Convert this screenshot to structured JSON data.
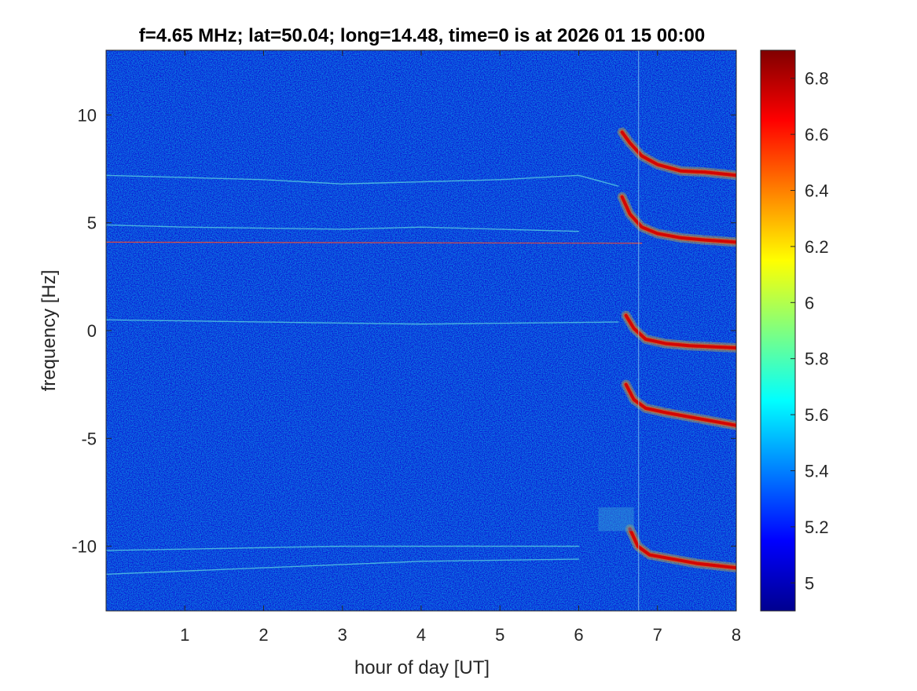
{
  "chart_data": {
    "type": "heatmap",
    "title": "f=4.65 MHz;  lat=50.04; long=14.48, time=0 is at 2026 01 15 00:00",
    "xlabel": "hour of day [UT]",
    "ylabel": "frequency [Hz]",
    "xlim": [
      0,
      8
    ],
    "ylim": [
      -13,
      13
    ],
    "x_ticks": [
      1,
      2,
      3,
      4,
      5,
      6,
      7,
      8
    ],
    "y_ticks": [
      10,
      5,
      0,
      -5,
      -10
    ],
    "colorbar": {
      "colormap": "jet",
      "range": [
        4.9,
        6.9
      ],
      "ticks": [
        6.8,
        6.6,
        6.4,
        6.2,
        6,
        5.8,
        5.6,
        5.4,
        5.2,
        5
      ]
    },
    "features": [
      {
        "kind": "weak-trace",
        "points": [
          [
            0,
            7.2
          ],
          [
            2,
            7.0
          ],
          [
            3,
            6.8
          ],
          [
            5,
            7.0
          ],
          [
            6,
            7.2
          ],
          [
            6.5,
            6.7
          ]
        ]
      },
      {
        "kind": "weak-trace",
        "points": [
          [
            0,
            4.9
          ],
          [
            1,
            4.8
          ],
          [
            3,
            4.7
          ],
          [
            4,
            4.8
          ],
          [
            6,
            4.6
          ]
        ]
      },
      {
        "kind": "line",
        "points": [
          [
            0,
            4.1
          ],
          [
            6.8,
            4.05
          ]
        ]
      },
      {
        "kind": "weak-trace",
        "points": [
          [
            0,
            0.5
          ],
          [
            2,
            0.4
          ],
          [
            4,
            0.3
          ],
          [
            6.5,
            0.4
          ]
        ]
      },
      {
        "kind": "weak-trace",
        "points": [
          [
            0,
            -11.3
          ],
          [
            2,
            -11.0
          ],
          [
            4,
            -10.7
          ],
          [
            6,
            -10.6
          ]
        ]
      },
      {
        "kind": "weak-trace",
        "points": [
          [
            0,
            -10.2
          ],
          [
            3,
            -10.0
          ],
          [
            6,
            -10.0
          ]
        ]
      },
      {
        "kind": "strong-trace",
        "points": [
          [
            6.55,
            9.2
          ],
          [
            6.65,
            8.7
          ],
          [
            6.8,
            8.1
          ],
          [
            7.0,
            7.7
          ],
          [
            7.3,
            7.4
          ],
          [
            7.6,
            7.35
          ],
          [
            8.0,
            7.2
          ]
        ]
      },
      {
        "kind": "strong-trace",
        "points": [
          [
            6.55,
            6.2
          ],
          [
            6.65,
            5.4
          ],
          [
            6.8,
            4.8
          ],
          [
            7.0,
            4.5
          ],
          [
            7.3,
            4.3
          ],
          [
            7.6,
            4.2
          ],
          [
            8.0,
            4.1
          ]
        ]
      },
      {
        "kind": "strong-trace",
        "points": [
          [
            6.6,
            0.7
          ],
          [
            6.7,
            0.1
          ],
          [
            6.85,
            -0.4
          ],
          [
            7.1,
            -0.6
          ],
          [
            7.4,
            -0.7
          ],
          [
            7.7,
            -0.75
          ],
          [
            8.0,
            -0.8
          ]
        ]
      },
      {
        "kind": "strong-trace",
        "points": [
          [
            6.6,
            -2.5
          ],
          [
            6.7,
            -3.2
          ],
          [
            6.85,
            -3.6
          ],
          [
            7.1,
            -3.8
          ],
          [
            7.4,
            -4.0
          ],
          [
            7.7,
            -4.2
          ],
          [
            8.0,
            -4.4
          ]
        ]
      },
      {
        "kind": "strong-trace",
        "points": [
          [
            6.65,
            -9.2
          ],
          [
            6.75,
            -10.0
          ],
          [
            6.9,
            -10.4
          ],
          [
            7.2,
            -10.6
          ],
          [
            7.5,
            -10.8
          ],
          [
            8.0,
            -11.0
          ]
        ]
      },
      {
        "kind": "patch",
        "points": [
          [
            6.25,
            -8.2
          ],
          [
            6.25,
            -9.3
          ],
          [
            6.7,
            -9.3
          ],
          [
            6.7,
            -8.2
          ]
        ]
      },
      {
        "kind": "vline",
        "points": [
          [
            6.76,
            13
          ],
          [
            6.76,
            -13
          ]
        ]
      }
    ]
  }
}
